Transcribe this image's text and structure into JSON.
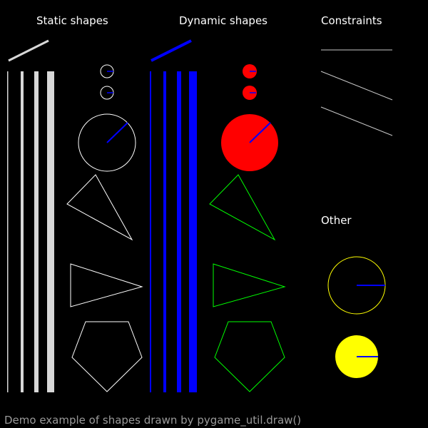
{
  "headings": {
    "static": "Static shapes",
    "dynamic": "Dynamic shapes",
    "constraints": "Constraints",
    "other": "Other"
  },
  "caption": "Demo example of shapes drawn by pygame_util.draw()",
  "colors": {
    "background": "#000000",
    "static": "#ffffff",
    "static_segment": "#d8d8d8",
    "dynamic_segment": "#0000ff",
    "dynamic_fill": "#ff0000",
    "dynamic_poly": "#00ff00",
    "rotation_indicator": "#0000ff",
    "constraint": "#c8c8c8",
    "other": "#ffff00",
    "caption": "#9a9a9a"
  }
}
